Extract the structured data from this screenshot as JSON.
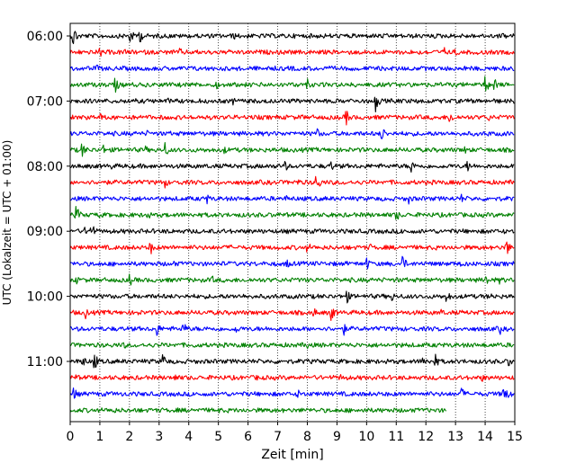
{
  "chart_data": {
    "type": "line",
    "title": "",
    "xlabel": "Zeit  [min]",
    "ylabel": "UTC (Lokalzeit = UTC + 01:00)",
    "xlim": [
      0,
      15
    ],
    "xticks": [
      "0",
      "1",
      "2",
      "3",
      "4",
      "5",
      "6",
      "7",
      "8",
      "9",
      "10",
      "11",
      "12",
      "13",
      "14",
      "15"
    ],
    "yticks": [
      {
        "label": "06:00",
        "trace": 0
      },
      {
        "label": "07:00",
        "trace": 4
      },
      {
        "label": "08:00",
        "trace": 8
      },
      {
        "label": "09:00",
        "trace": 12
      },
      {
        "label": "10:00",
        "trace": 16
      },
      {
        "label": "11:00",
        "trace": 20
      }
    ],
    "grid": "vertical dotted",
    "colors": [
      "#000000",
      "#ff0000",
      "#0000ff",
      "#008000"
    ],
    "traces": [
      {
        "start": "06:00",
        "color": "#000000",
        "end_min": 15,
        "events": [
          [
            0.1,
            1.0
          ],
          [
            2.0,
            0.8
          ],
          [
            2.3,
            0.9
          ],
          [
            5.5,
            0.4
          ],
          [
            10.5,
            0.3
          ],
          [
            14.6,
            0.4
          ]
        ]
      },
      {
        "start": "06:15",
        "color": "#ff0000",
        "end_min": 15,
        "events": [
          [
            1.0,
            0.5
          ],
          [
            1.8,
            0.4
          ],
          [
            3.7,
            0.4
          ],
          [
            12.6,
            0.5
          ],
          [
            13.0,
            0.4
          ]
        ]
      },
      {
        "start": "06:30",
        "color": "#0000ff",
        "end_min": 15,
        "events": [
          [
            0.9,
            0.4
          ],
          [
            4.1,
            0.3
          ],
          [
            7.5,
            0.3
          ],
          [
            13.3,
            0.3
          ]
        ]
      },
      {
        "start": "06:45",
        "color": "#008000",
        "end_min": 15,
        "events": [
          [
            1.5,
            0.8
          ],
          [
            4.9,
            0.5
          ],
          [
            8.0,
            0.5
          ],
          [
            14.0,
            0.9
          ],
          [
            14.3,
            0.6
          ]
        ]
      },
      {
        "start": "07:00",
        "color": "#000000",
        "end_min": 15,
        "events": [
          [
            3.3,
            0.3
          ],
          [
            5.5,
            0.4
          ],
          [
            10.3,
            0.9
          ],
          [
            11.8,
            0.4
          ],
          [
            15.0,
            0.6
          ]
        ]
      },
      {
        "start": "07:15",
        "color": "#ff0000",
        "end_min": 15,
        "events": [
          [
            1.0,
            0.4
          ],
          [
            7.8,
            0.3
          ],
          [
            9.3,
            0.8
          ],
          [
            12.8,
            0.7
          ],
          [
            14.1,
            0.4
          ]
        ]
      },
      {
        "start": "07:30",
        "color": "#0000ff",
        "end_min": 15,
        "events": [
          [
            2.6,
            0.3
          ],
          [
            8.3,
            0.6
          ],
          [
            10.5,
            0.8
          ],
          [
            14.1,
            0.3
          ]
        ]
      },
      {
        "start": "07:45",
        "color": "#008000",
        "end_min": 15,
        "events": [
          [
            0.4,
            0.8
          ],
          [
            1.1,
            0.5
          ],
          [
            2.5,
            0.5
          ],
          [
            3.2,
            0.7
          ],
          [
            5.2,
            0.4
          ],
          [
            13.3,
            0.4
          ]
        ]
      },
      {
        "start": "08:00",
        "color": "#000000",
        "end_min": 15,
        "events": [
          [
            1.4,
            0.3
          ],
          [
            7.2,
            0.7
          ],
          [
            8.8,
            0.5
          ],
          [
            11.5,
            0.7
          ],
          [
            13.4,
            0.6
          ]
        ]
      },
      {
        "start": "08:15",
        "color": "#ff0000",
        "end_min": 15,
        "events": [
          [
            1.1,
            0.3
          ],
          [
            3.2,
            0.5
          ],
          [
            7.7,
            0.4
          ],
          [
            8.3,
            1.0
          ],
          [
            10.9,
            0.3
          ]
        ]
      },
      {
        "start": "08:30",
        "color": "#0000ff",
        "end_min": 15,
        "events": [
          [
            4.6,
            0.5
          ],
          [
            7.3,
            0.3
          ],
          [
            11.4,
            0.6
          ],
          [
            13.2,
            0.4
          ]
        ]
      },
      {
        "start": "08:45",
        "color": "#008000",
        "end_min": 15,
        "events": [
          [
            0.2,
            0.9
          ],
          [
            1.0,
            0.4
          ],
          [
            2.6,
            0.5
          ],
          [
            11.0,
            0.6
          ]
        ]
      },
      {
        "start": "09:00",
        "color": "#000000",
        "end_min": 15,
        "events": [
          [
            0.5,
            0.4
          ],
          [
            0.7,
            0.9
          ],
          [
            3.3,
            0.3
          ],
          [
            11.2,
            0.4
          ],
          [
            14.6,
            0.3
          ]
        ]
      },
      {
        "start": "09:15",
        "color": "#ff0000",
        "end_min": 15,
        "events": [
          [
            2.7,
            0.7
          ],
          [
            5.4,
            0.3
          ],
          [
            8.0,
            0.6
          ],
          [
            10.1,
            0.4
          ],
          [
            14.7,
            0.9
          ]
        ]
      },
      {
        "start": "09:30",
        "color": "#0000ff",
        "end_min": 15,
        "events": [
          [
            3.5,
            0.3
          ],
          [
            7.3,
            0.5
          ],
          [
            10.0,
            0.6
          ],
          [
            11.2,
            0.8
          ],
          [
            13.2,
            0.5
          ]
        ]
      },
      {
        "start": "09:45",
        "color": "#008000",
        "end_min": 15,
        "events": [
          [
            0.2,
            0.4
          ],
          [
            2.0,
            0.6
          ],
          [
            4.8,
            0.4
          ],
          [
            11.0,
            0.3
          ],
          [
            14.0,
            0.7
          ],
          [
            14.5,
            0.5
          ]
        ]
      },
      {
        "start": "10:00",
        "color": "#000000",
        "end_min": 15,
        "events": [
          [
            5.8,
            0.3
          ],
          [
            9.3,
            0.8
          ],
          [
            10.8,
            0.7
          ],
          [
            12.7,
            0.7
          ],
          [
            14.2,
            0.4
          ]
        ]
      },
      {
        "start": "10:15",
        "color": "#ff0000",
        "end_min": 15,
        "events": [
          [
            0.5,
            0.6
          ],
          [
            2.3,
            0.3
          ],
          [
            8.2,
            0.5
          ],
          [
            8.8,
            0.8
          ],
          [
            12.5,
            0.4
          ]
        ]
      },
      {
        "start": "10:30",
        "color": "#0000ff",
        "end_min": 15,
        "events": [
          [
            2.9,
            0.8
          ],
          [
            3.8,
            0.7
          ],
          [
            5.6,
            0.5
          ],
          [
            9.2,
            0.7
          ],
          [
            14.5,
            0.5
          ]
        ]
      },
      {
        "start": "10:45",
        "color": "#008000",
        "end_min": 15,
        "events": [
          [
            1.8,
            0.4
          ],
          [
            4.2,
            0.3
          ],
          [
            8.0,
            0.4
          ],
          [
            11.3,
            0.3
          ],
          [
            13.3,
            0.3
          ]
        ]
      },
      {
        "start": "11:00",
        "color": "#000000",
        "end_min": 15,
        "events": [
          [
            0.4,
            0.7
          ],
          [
            0.8,
            0.9
          ],
          [
            3.1,
            0.9
          ],
          [
            11.9,
            0.6
          ],
          [
            12.3,
            0.7
          ],
          [
            14.8,
            0.6
          ]
        ]
      },
      {
        "start": "11:15",
        "color": "#ff0000",
        "end_min": 15,
        "events": [
          [
            0.2,
            0.4
          ],
          [
            3.5,
            0.5
          ],
          [
            6.3,
            0.3
          ],
          [
            9.1,
            0.4
          ],
          [
            13.9,
            0.4
          ]
        ]
      },
      {
        "start": "11:30",
        "color": "#0000ff",
        "end_min": 15,
        "events": [
          [
            0.1,
            0.7
          ],
          [
            7.7,
            0.5
          ],
          [
            13.2,
            0.6
          ],
          [
            14.6,
            0.8
          ],
          [
            14.8,
            0.5
          ]
        ]
      },
      {
        "start": "11:45",
        "color": "#008000",
        "end_min": 12.7,
        "events": [
          [
            1.4,
            0.5
          ],
          [
            5.0,
            0.3
          ],
          [
            9.9,
            0.3
          ]
        ]
      }
    ]
  }
}
